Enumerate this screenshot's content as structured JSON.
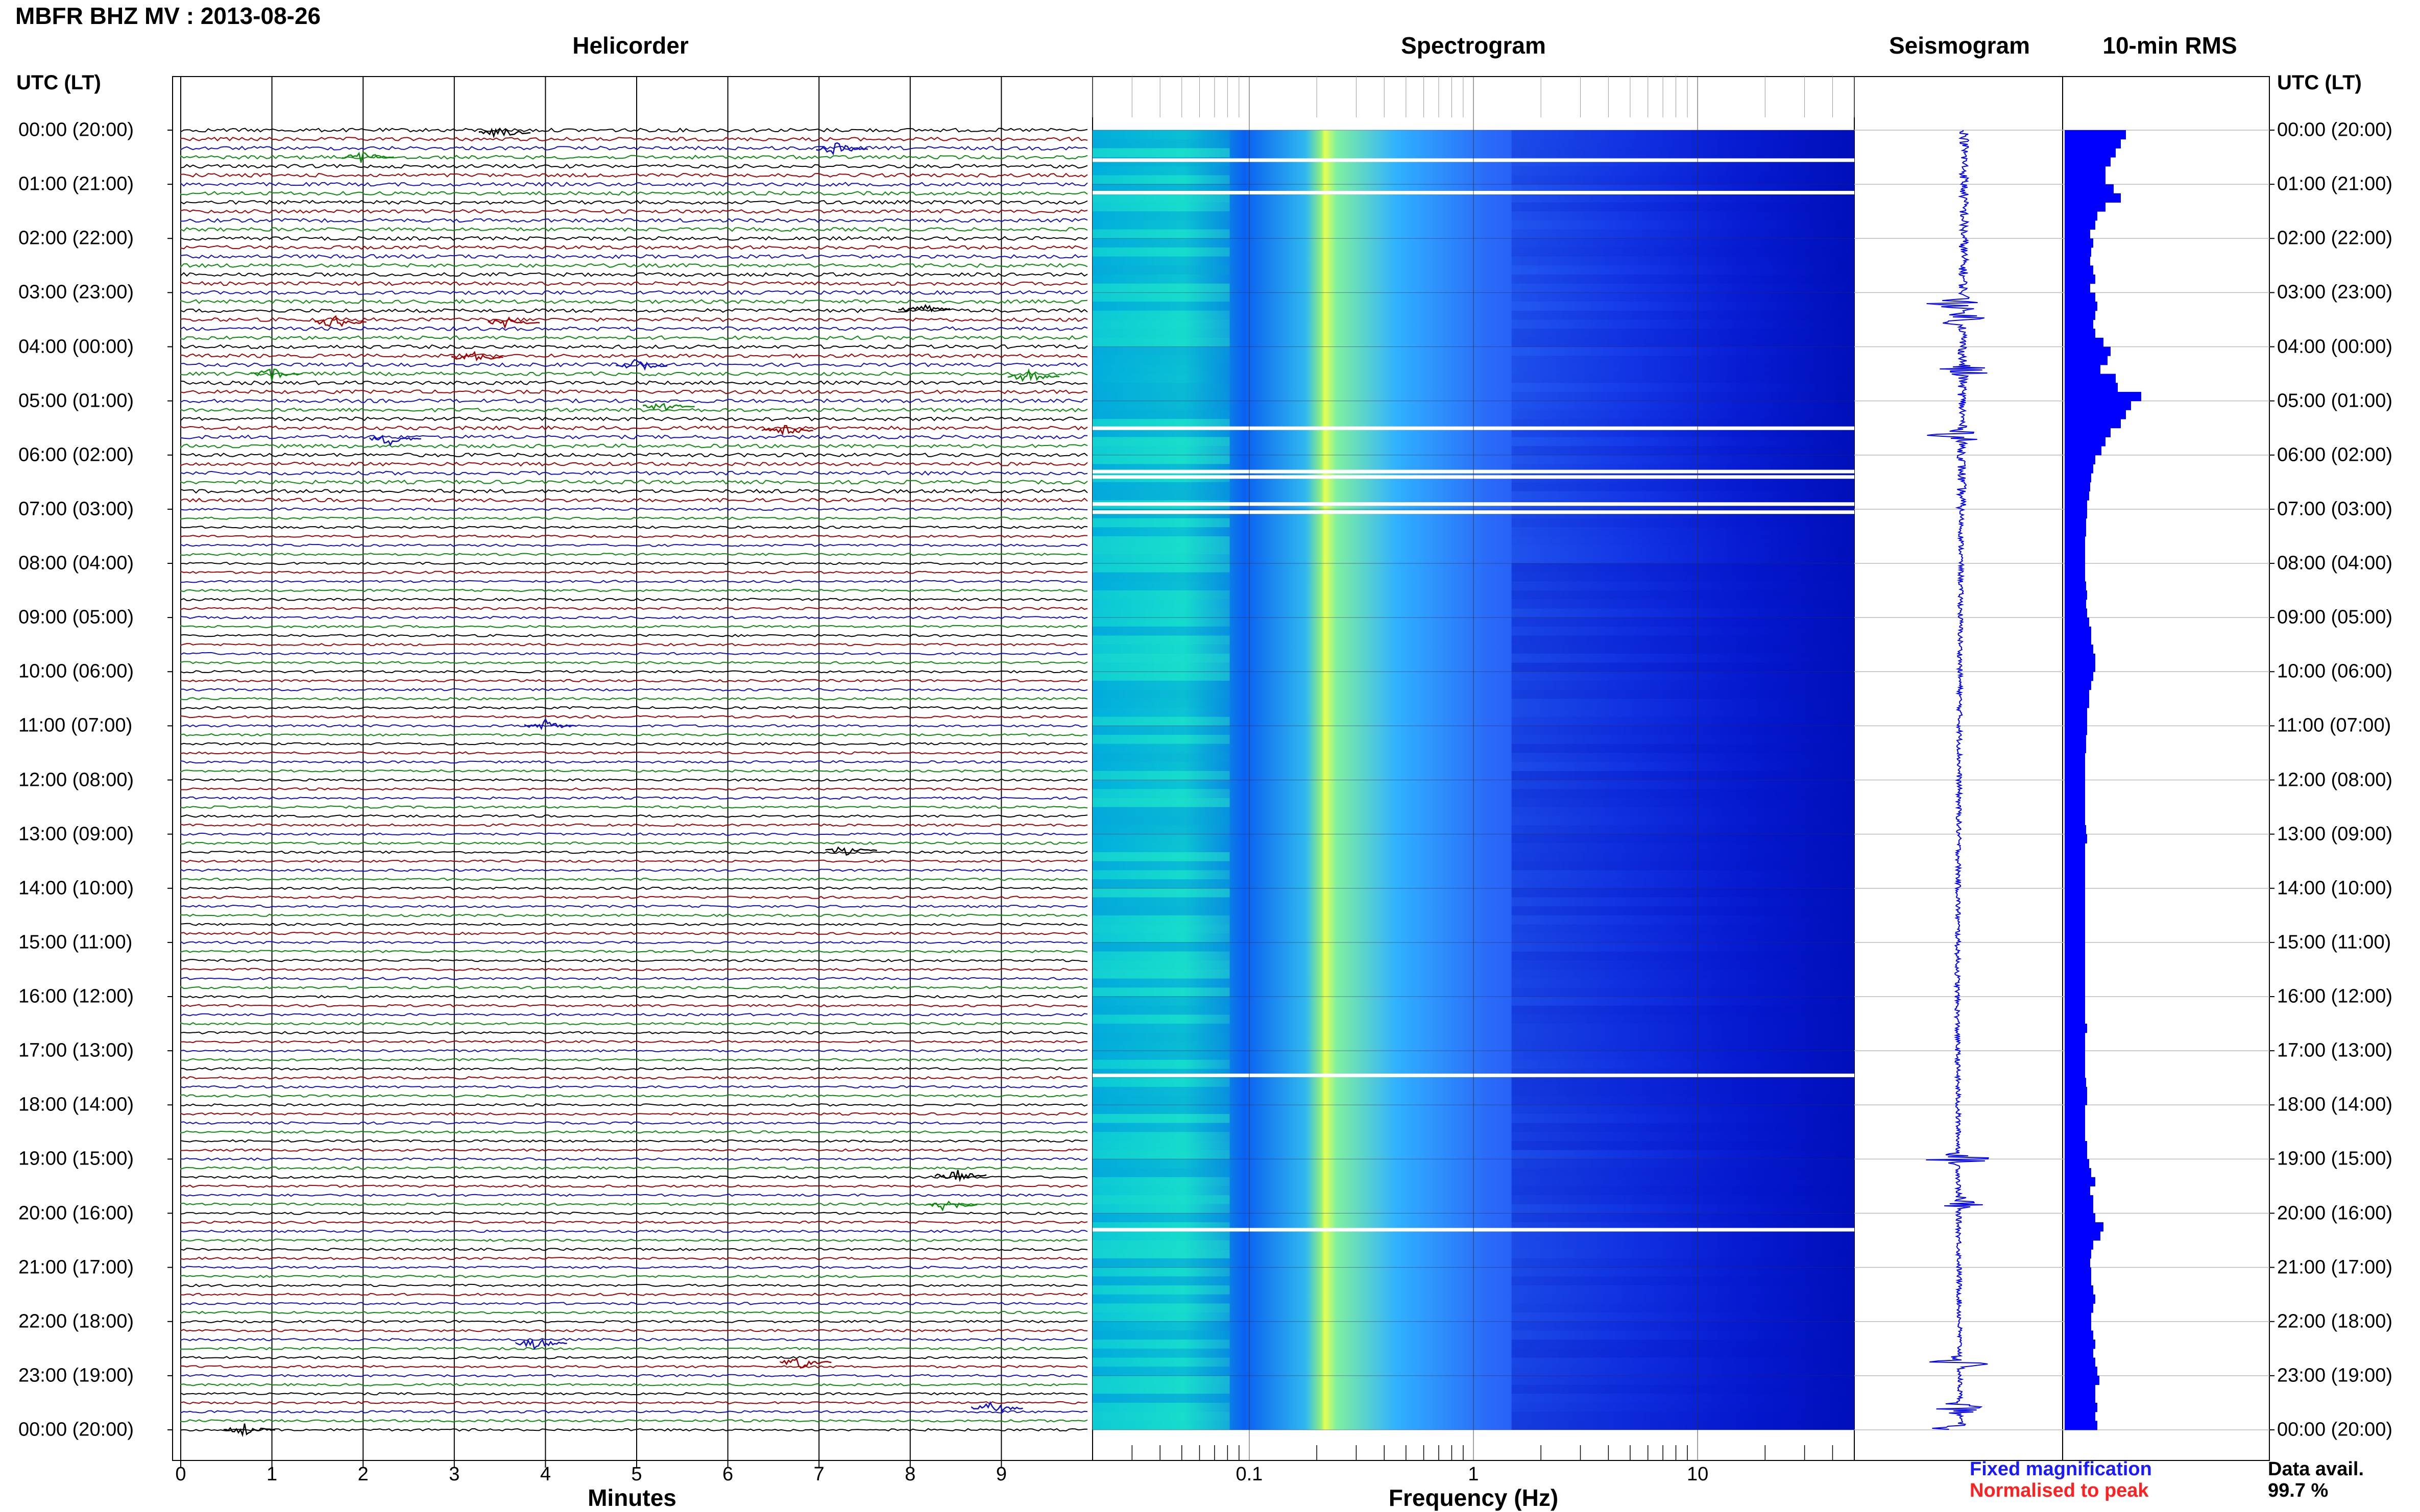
{
  "title": "MBFR BHZ MV : 2013-08-26",
  "panels": {
    "helicorder": "Helicorder",
    "spectrogram": "Spectrogram",
    "seismogram": "Seismogram",
    "rms": "10-min RMS"
  },
  "time_axis_label": "UTC (LT)",
  "time_labels": [
    "00:00 (20:00)",
    "01:00 (21:00)",
    "02:00 (22:00)",
    "03:00 (23:00)",
    "04:00 (00:00)",
    "05:00 (01:00)",
    "06:00 (02:00)",
    "07:00 (03:00)",
    "08:00 (04:00)",
    "09:00 (05:00)",
    "10:00 (06:00)",
    "11:00 (07:00)",
    "12:00 (08:00)",
    "13:00 (09:00)",
    "14:00 (10:00)",
    "15:00 (11:00)",
    "16:00 (12:00)",
    "17:00 (13:00)",
    "18:00 (14:00)",
    "19:00 (15:00)",
    "20:00 (16:00)",
    "21:00 (17:00)",
    "22:00 (18:00)",
    "23:00 (19:00)",
    "00:00 (20:00)"
  ],
  "helicorder_xlabel": "Minutes",
  "helicorder_xticks": [
    "0",
    "1",
    "2",
    "3",
    "4",
    "5",
    "6",
    "7",
    "8",
    "9"
  ],
  "spectrogram_xlabel": "Frequency (Hz)",
  "spectrogram_xticks": [
    "0.1",
    "1",
    "10"
  ],
  "legend": {
    "fixed": "Fixed magnification",
    "normalised": "Normalised to peak"
  },
  "data_avail": {
    "label": "Data avail.",
    "value": "99.7 %"
  },
  "colors": {
    "trace_cycle": [
      "#000000",
      "#a00000",
      "#1010c0",
      "#0a8a0a"
    ],
    "rms_bar": "#0000ff",
    "seismogram": "#0000ff",
    "spectrogram_low": "#0000c8",
    "spectrogram_mid": "#00c8ff",
    "spectrogram_high": "#e8ff40"
  },
  "chart_data": {
    "type": "heatmap",
    "hours_utc": [
      0,
      1,
      2,
      3,
      4,
      5,
      6,
      7,
      8,
      9,
      10,
      11,
      12,
      13,
      14,
      15,
      16,
      17,
      18,
      19,
      20,
      21,
      22,
      23,
      24
    ],
    "helicorder_minutes_range": [
      0,
      10
    ],
    "helicorder_traces_per_hour": 6,
    "spectrogram_frequency_range_hz": [
      0.02,
      50
    ],
    "spectrogram_log_scale": true,
    "spectrogram_dominant_frequency_hz": 0.25,
    "spectrogram_gaps_hours": [
      0.55,
      1.15,
      5.5,
      6.3,
      6.4,
      6.9,
      7.05,
      17.45,
      20.3
    ],
    "rms_10min_relative": [
      0.6,
      0.55,
      0.5,
      0.45,
      0.4,
      0.4,
      0.48,
      0.55,
      0.4,
      0.32,
      0.3,
      0.25,
      0.28,
      0.26,
      0.25,
      0.28,
      0.3,
      0.25,
      0.3,
      0.32,
      0.3,
      0.28,
      0.3,
      0.38,
      0.45,
      0.42,
      0.35,
      0.5,
      0.52,
      0.75,
      0.65,
      0.6,
      0.55,
      0.45,
      0.4,
      0.36,
      0.3,
      0.28,
      0.26,
      0.25,
      0.24,
      0.22,
      0.22,
      0.21,
      0.21,
      0.2,
      0.2,
      0.2,
      0.2,
      0.2,
      0.21,
      0.22,
      0.21,
      0.22,
      0.24,
      0.26,
      0.26,
      0.28,
      0.3,
      0.3,
      0.28,
      0.26,
      0.24,
      0.24,
      0.22,
      0.22,
      0.22,
      0.21,
      0.21,
      0.2,
      0.2,
      0.2,
      0.2,
      0.2,
      0.2,
      0.2,
      0.2,
      0.21,
      0.22,
      0.2,
      0.2,
      0.2,
      0.2,
      0.2,
      0.2,
      0.2,
      0.2,
      0.2,
      0.2,
      0.2,
      0.2,
      0.2,
      0.2,
      0.2,
      0.2,
      0.2,
      0.2,
      0.2,
      0.2,
      0.22,
      0.2,
      0.2,
      0.2,
      0.2,
      0.2,
      0.21,
      0.22,
      0.22,
      0.2,
      0.2,
      0.2,
      0.2,
      0.22,
      0.22,
      0.24,
      0.26,
      0.3,
      0.25,
      0.28,
      0.28,
      0.3,
      0.38,
      0.35,
      0.28,
      0.26,
      0.25,
      0.26,
      0.26,
      0.28,
      0.3,
      0.28,
      0.26,
      0.26,
      0.28,
      0.3,
      0.28,
      0.3,
      0.32,
      0.34,
      0.3,
      0.3,
      0.32,
      0.3,
      0.32
    ],
    "seismogram_events_hours": [
      3.2,
      3.5,
      4.45,
      5.65,
      19.0,
      19.8,
      22.75,
      23.6,
      24.0
    ]
  }
}
